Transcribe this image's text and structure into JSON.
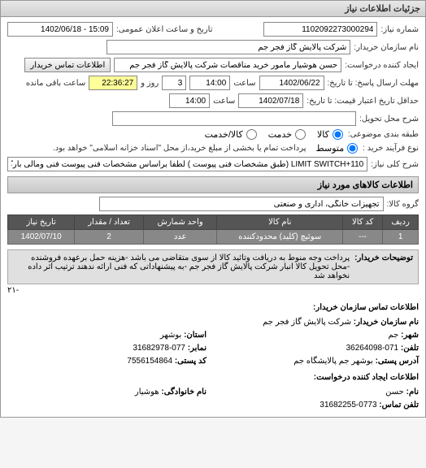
{
  "window": {
    "title": "جزئیات اطلاعات نیاز"
  },
  "fields": {
    "request_no_label": "شماره نیاز:",
    "request_no": "1102092273000294",
    "public_datetime_label": "تاریخ و ساعت اعلان عمومی:",
    "public_datetime": "15:09 - 1402/06/18",
    "buyer_name_label": "نام سازمان خریدار:",
    "buyer_name": "شرکت پالایش گاز فجر جم",
    "requester_label": "ایجاد کننده درخواست:",
    "requester": "حسن هوشیار مامور خرید مناقصات شرکت پالایش گاز فجر جم",
    "buyer_contact_btn": "اطلاعات تماس خریدار",
    "deadline_label": "مهلت ارسال پاسخ: تا تاریخ:",
    "deadline_date": "1402/06/22",
    "time_label": "ساعت",
    "deadline_time": "14:00",
    "days_remaining": "3",
    "days_remaining_label": "روز و",
    "time_remaining": "22:36:27",
    "time_remaining_label": "ساعت باقی مانده",
    "delivery_label": "حداقل تاریخ اعتبار قیمت: تا تاریخ:",
    "delivery_date": "1402/07/18",
    "delivery_time": "14:00",
    "need_desc_label": "شرح محل تحویل:",
    "need_desc": "",
    "tender_type_label": "طبقه بندی موضوعی:",
    "tender_opts": {
      "goods": "کالا",
      "service": "خدمت",
      "goods_service": "کالا/خدمت",
      "selected": "goods"
    },
    "buy_type_label": "نوع فرآیند خرید :",
    "buy_opts": {
      "low": "متوسط",
      "note": "پرداخت تمام یا بخشی از مبلغ خرید،از محل \"اسناد خزانه اسلامی\" خواهد بود."
    },
    "general_desc_label": "شرح کلی نیاز:",
    "general_desc": "LIMIT SWITCH+110 (طبق مشخصات فنی پیوست ) لطفا براساس مشخصات فنی پیوست فنی ومالی بارگزاری گردد ."
  },
  "goods_section": {
    "header": "اطلاعات کالاهای مورد نیاز",
    "group_label": "گروه کالا:",
    "group_value": "تجهیزات خانگی، اداری و صنعتی",
    "columns": [
      "ردیف",
      "کد کالا",
      "نام کالا",
      "واحد شمارش",
      "تعداد / مقدار",
      "تاریخ نیاز"
    ],
    "rows": [
      [
        "1",
        "---",
        "سوئیچ (کلید) محدودکننده",
        "عدد",
        "2",
        "1402/07/10"
      ]
    ]
  },
  "notes": {
    "label": "توضیحات خریدار:",
    "text": "پرداخت وجه منوط به دریافت وتائید کالا از سوی متقاضی می باشد -هزینه حمل برعهده فروشنده -محل تحویل کالا انبار شرکت پالایش گاز فجر جم -به پیشنهاداتی که فنی ارائه ندهند ترتیب اثر داده نخواهد شد"
  },
  "contact": {
    "header": "اطلاعات تماس سازمان خریدار:",
    "org_label": "نام سازمان خریدار:",
    "org": "شرکت پالایش گاز فجر جم",
    "city_label": "شهر:",
    "city": "جم",
    "province_label": "استان:",
    "province": "بوشهر",
    "phone_label": "تلفن:",
    "phone": "071-36264098",
    "fax_label": "نمابر:",
    "fax": "077-31682978",
    "address_label": "آدرس پستی:",
    "address": "بوشهر جم پالایشگاه جم",
    "postal_label": "کد پستی:",
    "postal": "7556154864",
    "req_creator_header": "اطلاعات ایجاد کننده درخواست:",
    "name_label": "نام:",
    "name": "حسن",
    "family_label": "نام خانوادگی:",
    "family": "هوشیار",
    "contact_phone_label": "تلفن تماس:",
    "contact_phone": "0773-31682255",
    "dash": "-۲۱"
  }
}
